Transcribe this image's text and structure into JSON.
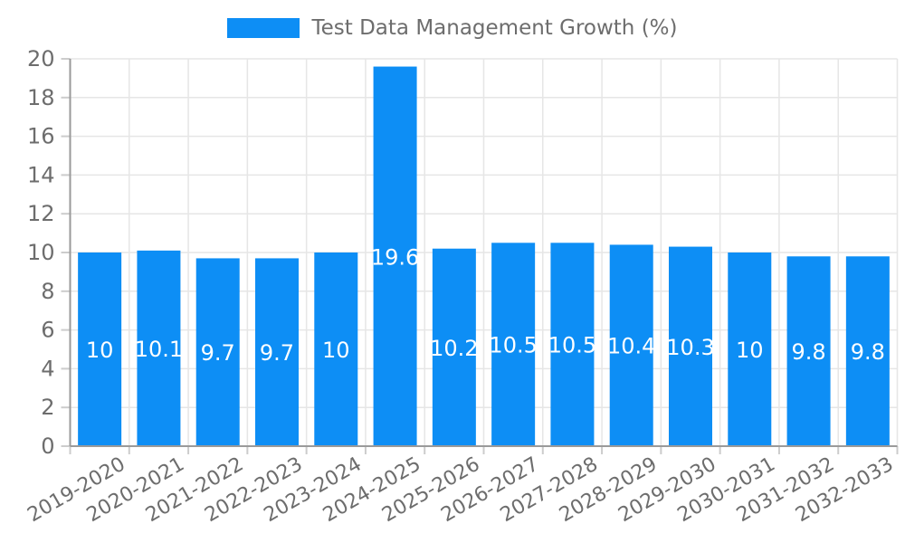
{
  "legend": {
    "series_label": "Test Data Management Growth (%)"
  },
  "chart_data": {
    "type": "bar",
    "title": "Test Data Management Growth (%)",
    "categories": [
      "2019-2020",
      "2020-2021",
      "2021-2022",
      "2022-2023",
      "2023-2024",
      "2024-2025",
      "2025-2026",
      "2026-2027",
      "2027-2028",
      "2028-2029",
      "2029-2030",
      "2030-2031",
      "2031-2032",
      "2032-2033"
    ],
    "values": [
      10,
      10.1,
      9.7,
      9.7,
      10,
      19.6,
      10.2,
      10.5,
      10.5,
      10.4,
      10.3,
      10,
      9.8,
      9.8
    ],
    "value_labels": [
      "10",
      "10.1",
      "9.7",
      "9.7",
      "10",
      "19.6",
      "10.2",
      "10.5",
      "10.5",
      "10.4",
      "10.3",
      "10",
      "9.8",
      "9.8"
    ],
    "xlabel": "",
    "ylabel": "",
    "ylim": [
      0,
      20
    ],
    "yticks": [
      0,
      2,
      4,
      6,
      8,
      10,
      12,
      14,
      16,
      18,
      20
    ],
    "grid": true,
    "legend_position": "top",
    "x_label_rotation": -30,
    "colors": {
      "bar": "#0d8ef5",
      "grid_line": "#e6e6e6",
      "axis_line": "#9a9a9a",
      "tick_mark": "#cccccc",
      "axis_text": "#6d6d6d",
      "value_label": "#ffffff"
    }
  }
}
